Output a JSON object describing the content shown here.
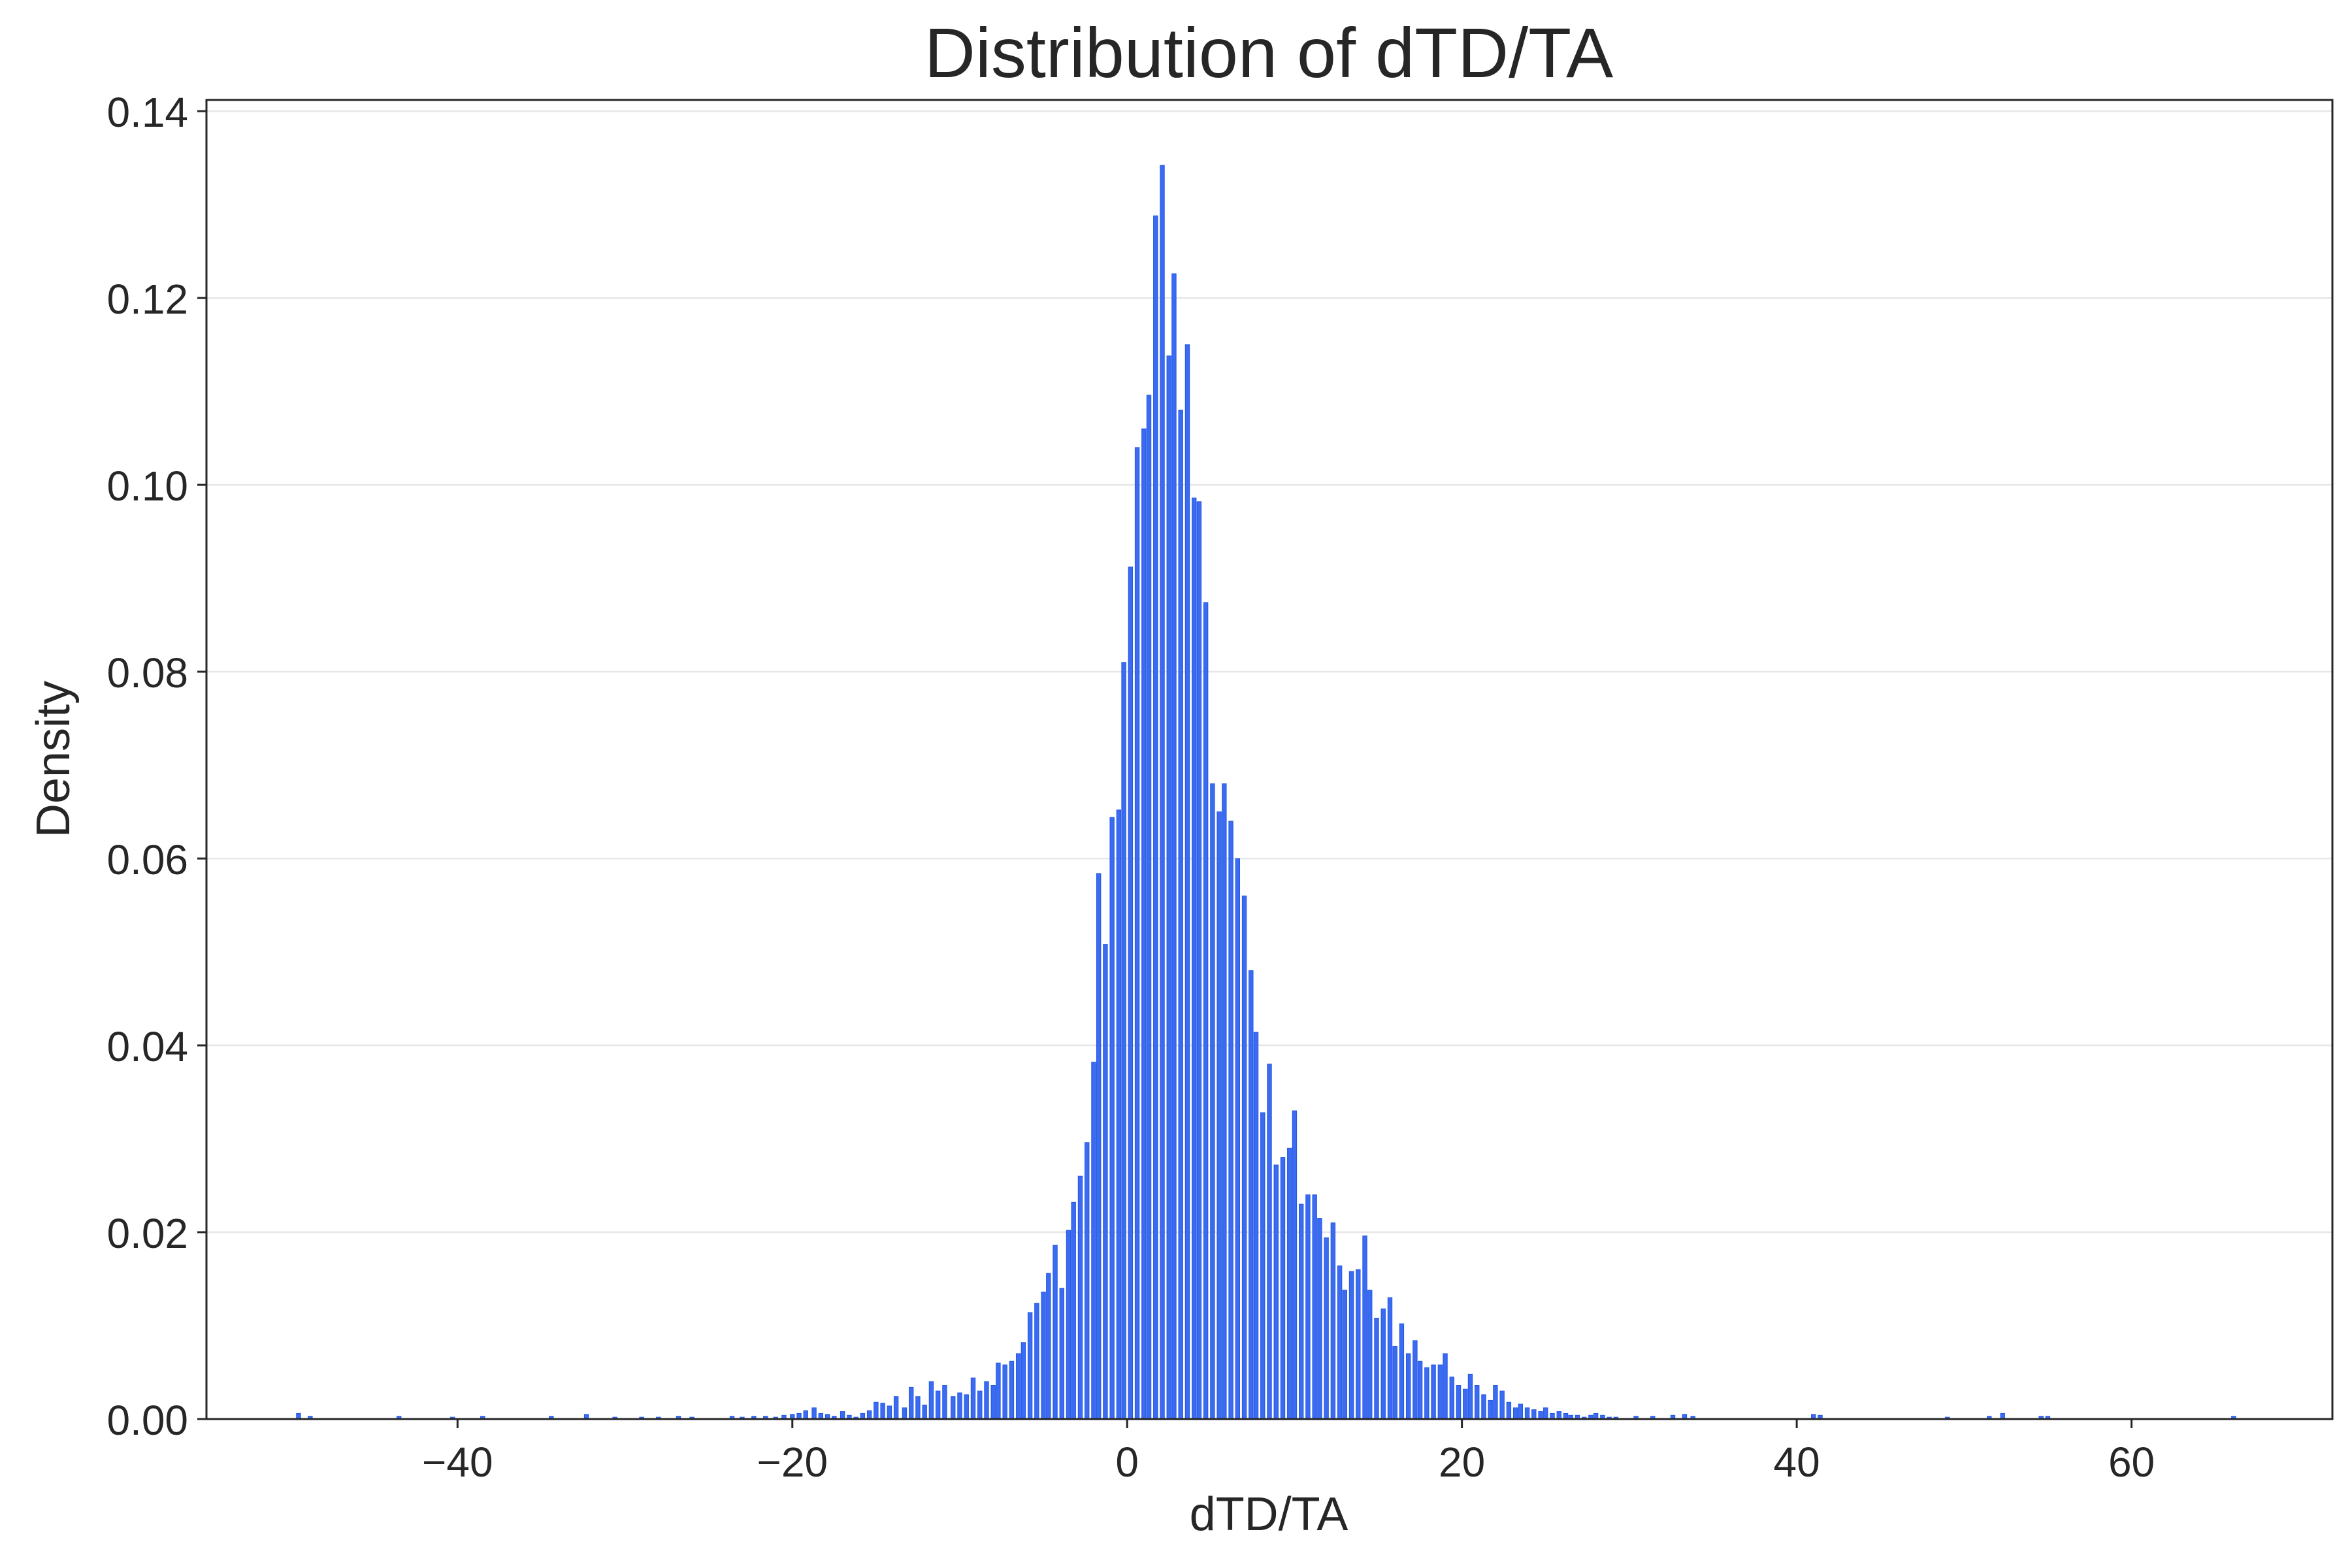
{
  "chart_data": {
    "type": "bar",
    "title": "Distribution of dTD/TA",
    "xlabel": "dTD/TA",
    "ylabel": "Density",
    "xlim": [
      -55,
      72
    ],
    "ylim": [
      0,
      0.1412
    ],
    "xticks": [
      -40,
      -20,
      0,
      20,
      40,
      60
    ],
    "xtick_labels": [
      "−40",
      "−20",
      "0",
      "20",
      "40",
      "60"
    ],
    "yticks": [
      0.0,
      0.02,
      0.04,
      0.06,
      0.08,
      0.1,
      0.12,
      0.14
    ],
    "ytick_labels": [
      "0.00",
      "0.02",
      "0.04",
      "0.06",
      "0.08",
      "0.10",
      "0.12",
      "0.14"
    ],
    "grid": "horizontal",
    "bar_color": "#3a6bf0",
    "bar_edge_color": "#2457e6",
    "bin_width": 0.25,
    "bins": [
      {
        "x": -49.5,
        "y": 0.0006
      },
      {
        "x": -48.8,
        "y": 0.0003
      },
      {
        "x": -43.5,
        "y": 0.0003
      },
      {
        "x": -40.3,
        "y": 0.0002
      },
      {
        "x": -38.5,
        "y": 0.0003
      },
      {
        "x": -34.4,
        "y": 0.0003
      },
      {
        "x": -32.3,
        "y": 0.0005
      },
      {
        "x": -30.6,
        "y": 0.0002
      },
      {
        "x": -29.0,
        "y": 0.0002
      },
      {
        "x": -28.0,
        "y": 0.0002
      },
      {
        "x": -26.8,
        "y": 0.0003
      },
      {
        "x": -26.0,
        "y": 0.0002
      },
      {
        "x": -23.6,
        "y": 0.0003
      },
      {
        "x": -23.0,
        "y": 0.0002
      },
      {
        "x": -22.3,
        "y": 0.0003
      },
      {
        "x": -21.6,
        "y": 0.0003
      },
      {
        "x": -21.0,
        "y": 0.0002
      },
      {
        "x": -20.5,
        "y": 0.0004
      },
      {
        "x": -20.0,
        "y": 0.0005
      },
      {
        "x": -19.6,
        "y": 0.0006
      },
      {
        "x": -19.2,
        "y": 0.0009
      },
      {
        "x": -18.7,
        "y": 0.0012
      },
      {
        "x": -18.3,
        "y": 0.0006
      },
      {
        "x": -17.9,
        "y": 0.0005
      },
      {
        "x": -17.5,
        "y": 0.0003
      },
      {
        "x": -17.0,
        "y": 0.0008
      },
      {
        "x": -16.6,
        "y": 0.0004
      },
      {
        "x": -16.2,
        "y": 0.0002
      },
      {
        "x": -15.8,
        "y": 0.0006
      },
      {
        "x": -15.4,
        "y": 0.0009
      },
      {
        "x": -15.0,
        "y": 0.0018
      },
      {
        "x": -14.6,
        "y": 0.0017
      },
      {
        "x": -14.2,
        "y": 0.0014
      },
      {
        "x": -13.8,
        "y": 0.0024
      },
      {
        "x": -13.3,
        "y": 0.0012
      },
      {
        "x": -12.9,
        "y": 0.0034
      },
      {
        "x": -12.5,
        "y": 0.0024
      },
      {
        "x": -12.1,
        "y": 0.0015
      },
      {
        "x": -11.7,
        "y": 0.004
      },
      {
        "x": -11.3,
        "y": 0.003
      },
      {
        "x": -10.9,
        "y": 0.0036
      },
      {
        "x": -10.4,
        "y": 0.0024
      },
      {
        "x": -10.0,
        "y": 0.0028
      },
      {
        "x": -9.6,
        "y": 0.0026
      },
      {
        "x": -9.2,
        "y": 0.0044
      },
      {
        "x": -8.8,
        "y": 0.003
      },
      {
        "x": -8.4,
        "y": 0.004
      },
      {
        "x": -8.0,
        "y": 0.0036
      },
      {
        "x": -7.7,
        "y": 0.006
      },
      {
        "x": -7.3,
        "y": 0.0058
      },
      {
        "x": -6.9,
        "y": 0.0062
      },
      {
        "x": -6.5,
        "y": 0.007
      },
      {
        "x": -6.2,
        "y": 0.0082
      },
      {
        "x": -5.8,
        "y": 0.0114
      },
      {
        "x": -5.4,
        "y": 0.0124
      },
      {
        "x": -5.0,
        "y": 0.0136
      },
      {
        "x": -4.7,
        "y": 0.0156
      },
      {
        "x": -4.3,
        "y": 0.0186
      },
      {
        "x": -3.9,
        "y": 0.014
      },
      {
        "x": -3.5,
        "y": 0.0202
      },
      {
        "x": -3.2,
        "y": 0.0232
      },
      {
        "x": -2.8,
        "y": 0.026
      },
      {
        "x": -2.4,
        "y": 0.0296
      },
      {
        "x": -2.0,
        "y": 0.0382
      },
      {
        "x": -1.7,
        "y": 0.0584
      },
      {
        "x": -1.3,
        "y": 0.0508
      },
      {
        "x": -0.9,
        "y": 0.0644
      },
      {
        "x": -0.5,
        "y": 0.0652
      },
      {
        "x": -0.2,
        "y": 0.081
      },
      {
        "x": 0.2,
        "y": 0.0912
      },
      {
        "x": 0.6,
        "y": 0.104
      },
      {
        "x": 1.0,
        "y": 0.106
      },
      {
        "x": 1.3,
        "y": 0.1096
      },
      {
        "x": 1.7,
        "y": 0.1288
      },
      {
        "x": 2.1,
        "y": 0.1342
      },
      {
        "x": 2.5,
        "y": 0.1138
      },
      {
        "x": 2.8,
        "y": 0.1226
      },
      {
        "x": 3.2,
        "y": 0.108
      },
      {
        "x": 3.6,
        "y": 0.115
      },
      {
        "x": 4.0,
        "y": 0.0986
      },
      {
        "x": 4.3,
        "y": 0.0982
      },
      {
        "x": 4.7,
        "y": 0.0874
      },
      {
        "x": 5.1,
        "y": 0.068
      },
      {
        "x": 5.5,
        "y": 0.065
      },
      {
        "x": 5.8,
        "y": 0.068
      },
      {
        "x": 6.2,
        "y": 0.064
      },
      {
        "x": 6.6,
        "y": 0.06
      },
      {
        "x": 7.0,
        "y": 0.056
      },
      {
        "x": 7.4,
        "y": 0.048
      },
      {
        "x": 7.7,
        "y": 0.0414
      },
      {
        "x": 8.1,
        "y": 0.0328
      },
      {
        "x": 8.5,
        "y": 0.038
      },
      {
        "x": 8.9,
        "y": 0.0272
      },
      {
        "x": 9.3,
        "y": 0.028
      },
      {
        "x": 9.7,
        "y": 0.029
      },
      {
        "x": 10.0,
        "y": 0.033
      },
      {
        "x": 10.4,
        "y": 0.023
      },
      {
        "x": 10.8,
        "y": 0.024
      },
      {
        "x": 11.2,
        "y": 0.024
      },
      {
        "x": 11.5,
        "y": 0.0215
      },
      {
        "x": 11.9,
        "y": 0.0194
      },
      {
        "x": 12.3,
        "y": 0.021
      },
      {
        "x": 12.7,
        "y": 0.0164
      },
      {
        "x": 13.0,
        "y": 0.0138
      },
      {
        "x": 13.4,
        "y": 0.0158
      },
      {
        "x": 13.8,
        "y": 0.016
      },
      {
        "x": 14.2,
        "y": 0.0196
      },
      {
        "x": 14.5,
        "y": 0.0138
      },
      {
        "x": 14.9,
        "y": 0.0108
      },
      {
        "x": 15.3,
        "y": 0.0118
      },
      {
        "x": 15.7,
        "y": 0.013
      },
      {
        "x": 16.0,
        "y": 0.0078
      },
      {
        "x": 16.4,
        "y": 0.0102
      },
      {
        "x": 16.8,
        "y": 0.007
      },
      {
        "x": 17.2,
        "y": 0.0084
      },
      {
        "x": 17.5,
        "y": 0.0062
      },
      {
        "x": 17.9,
        "y": 0.0055
      },
      {
        "x": 18.3,
        "y": 0.0058
      },
      {
        "x": 18.7,
        "y": 0.0058
      },
      {
        "x": 19.0,
        "y": 0.007
      },
      {
        "x": 19.4,
        "y": 0.0045
      },
      {
        "x": 19.8,
        "y": 0.0036
      },
      {
        "x": 20.2,
        "y": 0.0032
      },
      {
        "x": 20.5,
        "y": 0.0048
      },
      {
        "x": 20.9,
        "y": 0.0036
      },
      {
        "x": 21.3,
        "y": 0.0026
      },
      {
        "x": 21.7,
        "y": 0.002
      },
      {
        "x": 22.0,
        "y": 0.0036
      },
      {
        "x": 22.4,
        "y": 0.003
      },
      {
        "x": 22.8,
        "y": 0.0018
      },
      {
        "x": 23.2,
        "y": 0.0012
      },
      {
        "x": 23.5,
        "y": 0.0016
      },
      {
        "x": 23.9,
        "y": 0.0012
      },
      {
        "x": 24.3,
        "y": 0.001
      },
      {
        "x": 24.7,
        "y": 0.0008
      },
      {
        "x": 25.0,
        "y": 0.0012
      },
      {
        "x": 25.4,
        "y": 0.0006
      },
      {
        "x": 25.8,
        "y": 0.0008
      },
      {
        "x": 26.2,
        "y": 0.0006
      },
      {
        "x": 26.5,
        "y": 0.0004
      },
      {
        "x": 26.9,
        "y": 0.0004
      },
      {
        "x": 27.3,
        "y": 0.0002
      },
      {
        "x": 27.7,
        "y": 0.0004
      },
      {
        "x": 28.0,
        "y": 0.0006
      },
      {
        "x": 28.4,
        "y": 0.0004
      },
      {
        "x": 28.8,
        "y": 0.0002
      },
      {
        "x": 29.2,
        "y": 0.0002
      },
      {
        "x": 30.4,
        "y": 0.0003
      },
      {
        "x": 31.4,
        "y": 0.0003
      },
      {
        "x": 32.6,
        "y": 0.0004
      },
      {
        "x": 33.3,
        "y": 0.0005
      },
      {
        "x": 33.8,
        "y": 0.0003
      },
      {
        "x": 41.0,
        "y": 0.0005
      },
      {
        "x": 41.4,
        "y": 0.0004
      },
      {
        "x": 49.0,
        "y": 0.0002
      },
      {
        "x": 51.5,
        "y": 0.0003
      },
      {
        "x": 52.3,
        "y": 0.0006
      },
      {
        "x": 54.6,
        "y": 0.0003
      },
      {
        "x": 55.0,
        "y": 0.0003
      },
      {
        "x": 66.1,
        "y": 0.0003
      }
    ]
  }
}
